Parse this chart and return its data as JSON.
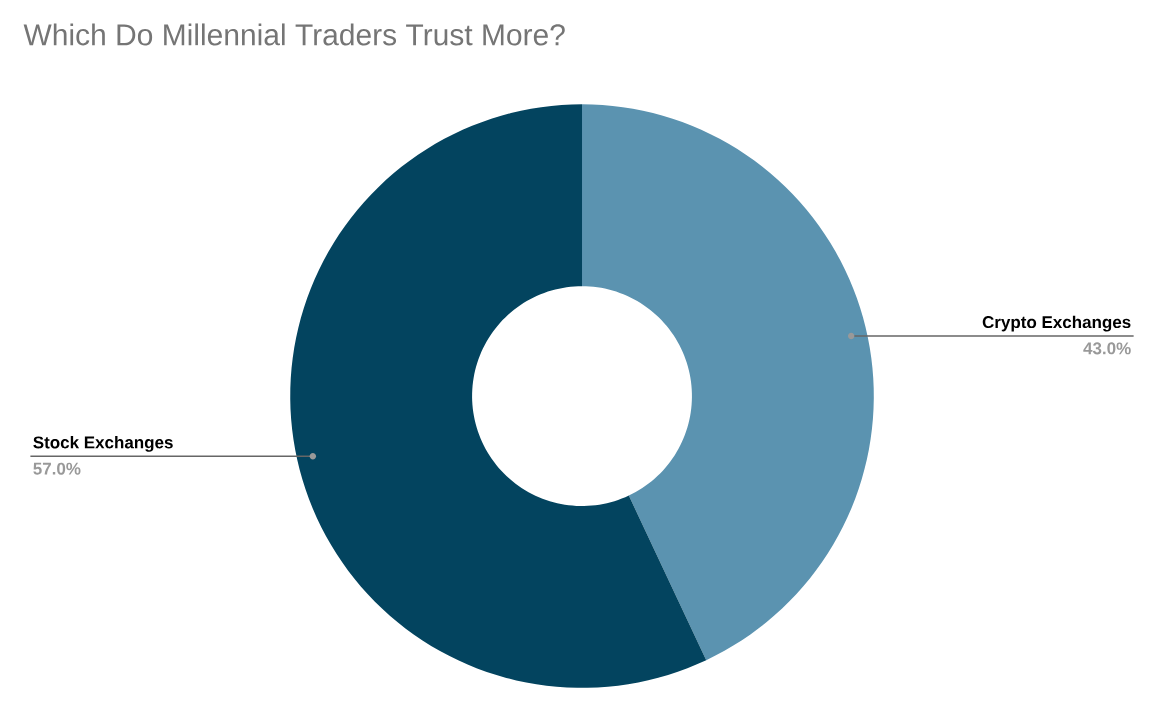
{
  "chart_data": {
    "type": "donut",
    "title": "Which Do Millennial Traders Trust More?",
    "categories": [
      "Crypto Exchanges",
      "Stock Exchanges"
    ],
    "values": [
      43.0,
      57.0
    ],
    "colors": [
      "#5b93b0",
      "#03445f"
    ],
    "value_labels": [
      "43.0%",
      "57.0%"
    ]
  }
}
